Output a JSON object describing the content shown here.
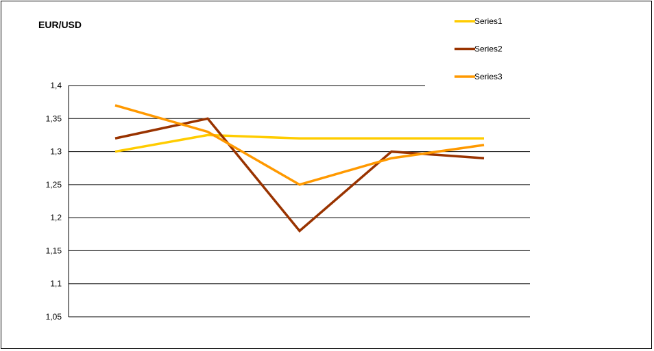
{
  "chart_data": {
    "type": "line",
    "title": "EUR/USD",
    "xlabel": "",
    "ylabel": "",
    "categories": [
      "",
      "",
      "",
      "",
      ""
    ],
    "ylim": [
      1.05,
      1.4
    ],
    "yticks": [
      1.4,
      1.35,
      1.3,
      1.25,
      1.2,
      1.15,
      1.1,
      1.05
    ],
    "ytick_labels": [
      "1,4",
      "1,35",
      "1,3",
      "1,25",
      "1,2",
      "1,15",
      "1,1",
      "1,05"
    ],
    "grid": true,
    "legend_position": "top-right",
    "series": [
      {
        "name": "Series1",
        "color": "#FFCC00",
        "values": [
          1.3,
          1.325,
          1.32,
          1.32,
          1.32
        ]
      },
      {
        "name": "Series2",
        "color": "#993300",
        "values": [
          1.32,
          1.35,
          1.18,
          1.3,
          1.29
        ]
      },
      {
        "name": "Series3",
        "color": "#FF9900",
        "values": [
          1.37,
          1.33,
          1.25,
          1.29,
          1.31
        ]
      }
    ]
  }
}
